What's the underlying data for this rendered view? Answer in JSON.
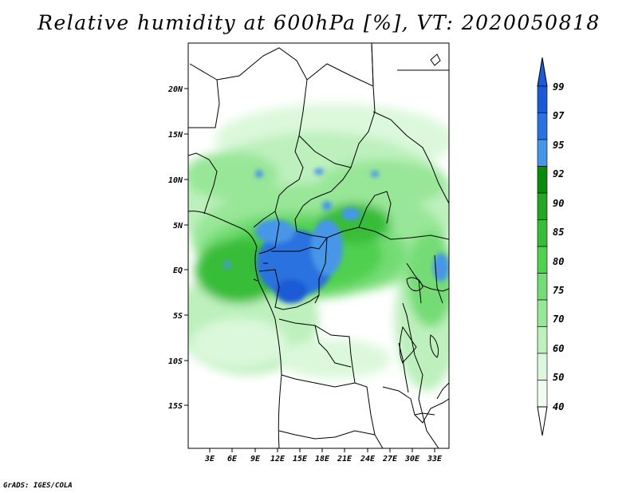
{
  "title": "Relative humidity at 600hPa [%], VT: 2020050818",
  "credit": "GrADS: IGES/COLA",
  "map": {
    "lat_labels": [
      "20N",
      "15N",
      "10N",
      "5N",
      "EQ",
      "5S",
      "10S",
      "15S"
    ],
    "lon_labels": [
      "3E",
      "6E",
      "9E",
      "12E",
      "15E",
      "18E",
      "21E",
      "24E",
      "27E",
      "30E",
      "33E"
    ]
  },
  "colorbar": {
    "labels": [
      "99",
      "97",
      "95",
      "92",
      "90",
      "85",
      "80",
      "75",
      "70",
      "60",
      "50",
      "40"
    ],
    "colors": [
      "#1c5ad6",
      "#2a72e0",
      "#4696e8",
      "#0b8a0b",
      "#24a524",
      "#37bd37",
      "#4fd04f",
      "#74dc74",
      "#98e698",
      "#bdf0bd",
      "#dcf8dc",
      "#effcef"
    ]
  },
  "colors": {
    "land": "#ffffff",
    "border": "#000000"
  }
}
